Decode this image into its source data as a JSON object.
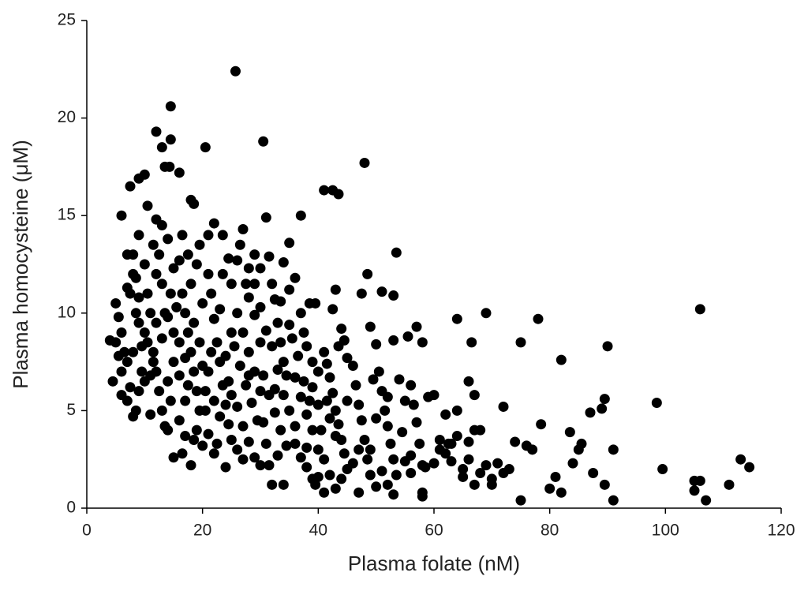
{
  "chart_data": {
    "type": "scatter",
    "x_label": "Plasma folate (nM)",
    "y_label": "Plasma homocysteine (μM)",
    "color": "#000000",
    "xlim": [
      0,
      120
    ],
    "xticks": [
      0,
      20,
      40,
      60,
      80,
      100,
      120
    ],
    "ylim": [
      0,
      25
    ],
    "yticks": [
      0,
      5,
      10,
      15,
      20,
      25
    ],
    "x": [
      25.7,
      14.5,
      12,
      14.5,
      13,
      30.5,
      20.5,
      13.5,
      14.3,
      16,
      48,
      9,
      10,
      7.5,
      41,
      42.5,
      43.5,
      18,
      18.5,
      6,
      10.5,
      37,
      106,
      98.5,
      113,
      114.5,
      111,
      107,
      105,
      106,
      105,
      99.5,
      91,
      90,
      89.5,
      89,
      87,
      91,
      87.5,
      89.5,
      82,
      78,
      75,
      69,
      66.5,
      64,
      53.5,
      48.5,
      53,
      51,
      47.5,
      4,
      4.5,
      75,
      80,
      82,
      81,
      84,
      85,
      85.5,
      83.5,
      78.5,
      77,
      76,
      74,
      72,
      70,
      68,
      67,
      65,
      66,
      66,
      67,
      63,
      61,
      62,
      60,
      58,
      58,
      53,
      52,
      5,
      5.5,
      6,
      6.5,
      7,
      7.5,
      8,
      8,
      8.5,
      9,
      9.5,
      6,
      7,
      8,
      9,
      9.5,
      7,
      8.5,
      9,
      10,
      6,
      5,
      7.5,
      8.5,
      10,
      10,
      5.5,
      8,
      9,
      7,
      10.5,
      11,
      11.5,
      12,
      12.5,
      13,
      13.5,
      11,
      12,
      12.5,
      13,
      14,
      14.5,
      15,
      15,
      11,
      12,
      13,
      14,
      14.5,
      11.5,
      12,
      13.5,
      14,
      15,
      10.5,
      11.5,
      13,
      14,
      15,
      16,
      16.5,
      17,
      17.5,
      18,
      18.5,
      19,
      19.5,
      16,
      17,
      18,
      16,
      17,
      18,
      19,
      19.5,
      16.5,
      17.5,
      20,
      20,
      18.5,
      16,
      17,
      19,
      20,
      15.5,
      17.5,
      18.5,
      19.5,
      16.5,
      21,
      21.5,
      22,
      22.5,
      23,
      23.5,
      24,
      24.5,
      21,
      22,
      24,
      21,
      22,
      23.5,
      24.5,
      25,
      20.5,
      22,
      23,
      24,
      25,
      21.5,
      23,
      22.5,
      25,
      20.5,
      21,
      23.5,
      24.5,
      25,
      26,
      26.5,
      27,
      28,
      29,
      26,
      27,
      28,
      29,
      30,
      26,
      27,
      28,
      29,
      30,
      26.5,
      27.5,
      28.5,
      29.5,
      27,
      28,
      29,
      30,
      30,
      29,
      26,
      28,
      25.5,
      27.5,
      30,
      31,
      31.5,
      32,
      32.5,
      33,
      33.5,
      34,
      30.5,
      31.5,
      32.5,
      33.5,
      34.5,
      31.5,
      32,
      34,
      33,
      34,
      35,
      35,
      31,
      32,
      33,
      34,
      35,
      35,
      31,
      32.5,
      34.5,
      33.5,
      30.5,
      36,
      37,
      37.5,
      38,
      39,
      36,
      37,
      38,
      39,
      36,
      37,
      38,
      39,
      39.5,
      40,
      38.5,
      39.5,
      36.5,
      37.5,
      38.5,
      40,
      40,
      36,
      38,
      39,
      35.5,
      40,
      41,
      41.5,
      42,
      42.5,
      43,
      43.5,
      44,
      44.5,
      45,
      41,
      42,
      43,
      41,
      42,
      43.5,
      44,
      44.5,
      45,
      40.5,
      41.5,
      43,
      44,
      45,
      42.5,
      43,
      46,
      46.5,
      47,
      47.5,
      48,
      48.5,
      49,
      47,
      49.5,
      49,
      50,
      50.5,
      51,
      51.5,
      52,
      52.5,
      53,
      53.5,
      50,
      51,
      52,
      53,
      54,
      55,
      54.5,
      55,
      49,
      50,
      46,
      47,
      56,
      56.5,
      57,
      57.5,
      58,
      56,
      59,
      56,
      57,
      58,
      55.5,
      58.5,
      61,
      62,
      63,
      64,
      64,
      65,
      66,
      67,
      68,
      69,
      71,
      72,
      73,
      60,
      62.5,
      70
    ],
    "values": [
      22.4,
      20.6,
      19.3,
      18.9,
      18.5,
      18.8,
      18.5,
      17.5,
      17.5,
      17.2,
      17.7,
      16.9,
      17.1,
      16.5,
      16.3,
      16.3,
      16.1,
      15.8,
      15.6,
      15,
      15.5,
      15,
      10.2,
      5.4,
      2.5,
      2.1,
      1.2,
      0.4,
      1.4,
      1.4,
      0.9,
      2,
      0.4,
      8.3,
      5.6,
      5.1,
      4.9,
      3,
      1.8,
      1.2,
      7.6,
      9.7,
      8.5,
      10,
      8.5,
      9.7,
      13.1,
      12,
      10.9,
      11.1,
      11,
      8.6,
      6.5,
      0.4,
      1,
      0.8,
      1.6,
      2.3,
      3,
      3.3,
      3.9,
      4.3,
      3,
      3.2,
      3.4,
      5.2,
      1.2,
      1.8,
      1.2,
      2,
      2.5,
      3.4,
      4,
      3.3,
      3,
      4.8,
      5.8,
      0.8,
      0.6,
      0.7,
      1.2,
      10.5,
      9.8,
      9,
      8,
      7.5,
      11,
      12,
      13,
      10,
      9.5,
      7,
      5.8,
      5.5,
      4.7,
      6,
      8.3,
      11.3,
      11.8,
      14,
      12.5,
      7,
      8.5,
      6.2,
      5,
      6.5,
      9,
      7.8,
      8,
      10.8,
      13,
      11,
      10,
      8,
      7,
      6,
      5,
      4.2,
      4.8,
      12,
      13,
      14.5,
      13.8,
      11,
      9,
      7.5,
      6.8,
      9.5,
      8.7,
      6.5,
      5.5,
      13.5,
      14.8,
      10,
      4,
      2.6,
      8.5,
      7.5,
      11.5,
      9.8,
      12.3,
      12.7,
      11,
      10,
      9,
      8,
      7,
      6,
      5,
      4.5,
      3.7,
      2.2,
      6.8,
      7.7,
      11.5,
      12.5,
      13.5,
      14,
      13,
      10.5,
      7.3,
      9.5,
      8.5,
      5.5,
      4,
      3.2,
      10.3,
      6.3,
      3.5,
      8.5,
      2.8,
      12,
      11,
      9.7,
      8.5,
      7.5,
      6.3,
      5.3,
      4.3,
      3.8,
      2.8,
      2.1,
      14,
      14.6,
      14,
      12.8,
      11.5,
      6,
      5.5,
      4.7,
      7.8,
      9,
      8,
      10.2,
      3.3,
      5.8,
      5,
      7,
      12,
      6.5,
      3.5,
      12.7,
      13.5,
      14.3,
      12.3,
      11.5,
      10,
      9,
      8,
      7,
      6,
      5.2,
      4.2,
      3.4,
      2.6,
      2.2,
      7.3,
      6.3,
      5.4,
      4.5,
      2.5,
      10.8,
      9.9,
      10.3,
      12.3,
      13,
      3,
      6.8,
      8.3,
      11.5,
      8.5,
      14.9,
      12.9,
      11.5,
      10.7,
      9.5,
      8.5,
      7.5,
      6.8,
      5.8,
      4.9,
      4,
      3.2,
      2.2,
      1.2,
      1.2,
      2.7,
      12.6,
      13.6,
      11.2,
      9.1,
      8.3,
      7.1,
      5.8,
      5,
      9.4,
      3.3,
      6.1,
      6.8,
      10.6,
      4.4,
      11.8,
      10,
      9,
      8.3,
      7.5,
      6.7,
      5.7,
      4.8,
      4,
      3.3,
      2.6,
      2.1,
      1.5,
      1.2,
      1.6,
      10.5,
      10.5,
      7.8,
      6.5,
      5.5,
      7,
      3,
      4.2,
      3.1,
      6.2,
      8.7,
      5.3,
      8,
      7.4,
      6.7,
      5.9,
      5,
      4.3,
      3.5,
      2.8,
      2,
      2.5,
      1.7,
      1,
      0.8,
      4.6,
      8.3,
      9.2,
      8.6,
      5.5,
      4,
      5.5,
      3.7,
      1.5,
      7.7,
      10.2,
      11.2,
      7.3,
      6.3,
      5.3,
      4.5,
      3.5,
      2.5,
      1.7,
      0.8,
      6.6,
      9.3,
      8.4,
      7,
      6,
      5,
      4.2,
      3.3,
      2.5,
      1.7,
      1.1,
      1.9,
      5.7,
      8.6,
      6.6,
      5.5,
      3.9,
      2.4,
      3,
      4.6,
      2.3,
      3,
      6.3,
      5.3,
      4.4,
      3.3,
      2.2,
      1.8,
      5.7,
      2.7,
      9.3,
      8.5,
      8.8,
      2.1,
      3.5,
      2.8,
      2.4,
      3.7,
      5,
      1.6,
      6.5,
      5.8,
      4,
      2.2,
      2.3,
      1.8,
      2,
      2.3,
      3.3,
      1.5
    ]
  }
}
